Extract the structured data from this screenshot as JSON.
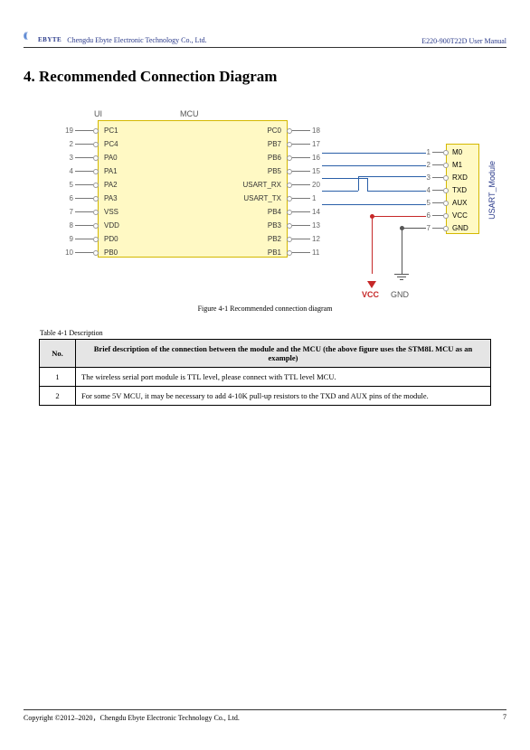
{
  "header": {
    "logo_text": "EBYTE",
    "company": "Chengdu Ebyte Electronic Technology Co., Ltd.",
    "doc": "E220-900T22D User Manual"
  },
  "section_title": "4. Recommended Connection Diagram",
  "diagram": {
    "title_ui": "UI",
    "title_mcu": "MCU",
    "title_mod": "USART_Module",
    "mcu_left_pins": [
      {
        "n": "19",
        "l": "PC1"
      },
      {
        "n": "2",
        "l": "PC4"
      },
      {
        "n": "3",
        "l": "PA0"
      },
      {
        "n": "4",
        "l": "PA1"
      },
      {
        "n": "5",
        "l": "PA2"
      },
      {
        "n": "6",
        "l": "PA3"
      },
      {
        "n": "7",
        "l": "VSS"
      },
      {
        "n": "8",
        "l": "VDD"
      },
      {
        "n": "9",
        "l": "PD0"
      },
      {
        "n": "10",
        "l": "PB0"
      }
    ],
    "mcu_right_pins": [
      {
        "n": "18",
        "l": "PC0"
      },
      {
        "n": "17",
        "l": "PB7"
      },
      {
        "n": "16",
        "l": "PB6"
      },
      {
        "n": "15",
        "l": "PB5"
      },
      {
        "n": "20",
        "l": "USART_RX"
      },
      {
        "n": "1",
        "l": "USART_TX"
      },
      {
        "n": "14",
        "l": "PB4"
      },
      {
        "n": "13",
        "l": "PB3"
      },
      {
        "n": "12",
        "l": "PB2"
      },
      {
        "n": "11",
        "l": "PB1"
      }
    ],
    "mod_pins": [
      {
        "n": "1",
        "l": "M0"
      },
      {
        "n": "2",
        "l": "M1"
      },
      {
        "n": "3",
        "l": "RXD"
      },
      {
        "n": "4",
        "l": "TXD"
      },
      {
        "n": "5",
        "l": "AUX"
      },
      {
        "n": "6",
        "l": "VCC"
      },
      {
        "n": "7",
        "l": "GND"
      }
    ],
    "vcc_label": "VCC",
    "gnd_label": "GND",
    "colors": {
      "wire": "#2a5fa8",
      "power": "#c62828",
      "chip_fill": "#fff9c4",
      "chip_border": "#d4b800"
    }
  },
  "figure_caption": "Figure 4-1 Recommended connection diagram",
  "table_caption": "Table 4-1 Description",
  "table": {
    "headers": {
      "no": "No.",
      "desc": "Brief description of the connection between the module and the MCU (the above figure uses the STM8L MCU as an example)"
    },
    "rows": [
      {
        "no": "1",
        "desc": "The wireless serial port module is TTL level, please connect with TTL level MCU."
      },
      {
        "no": "2",
        "desc": "For some 5V MCU, it may be necessary to add 4-10K pull-up resistors to the TXD and AUX pins of the module."
      }
    ]
  },
  "footer": {
    "copyright": "Copyright ©2012–2020，Chengdu Ebyte Electronic Technology Co., Ltd.",
    "page": "7"
  }
}
